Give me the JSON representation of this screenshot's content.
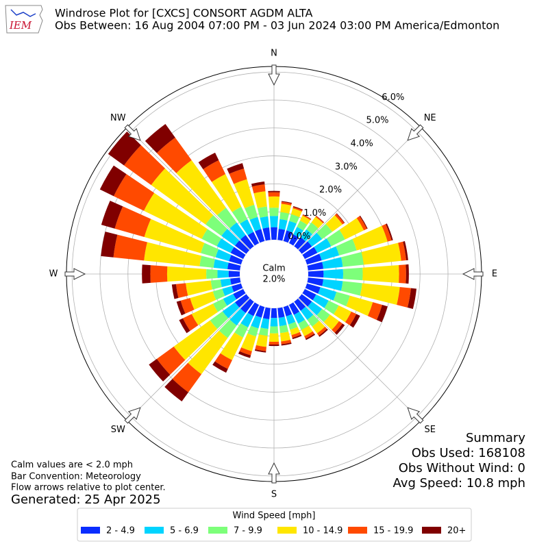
{
  "header": {
    "logo_text": "IEM",
    "title": "Windrose Plot for [CXCS] CONSORT AGDM  ALTA",
    "subtitle": "Obs Between: 16 Aug 2004 07:00 PM - 03 Jun 2024 03:00 PM America/Edmonton"
  },
  "chart_data": {
    "type": "windrose",
    "directions": [
      0,
      10,
      20,
      30,
      40,
      50,
      60,
      70,
      80,
      90,
      100,
      110,
      120,
      130,
      140,
      150,
      160,
      170,
      180,
      190,
      200,
      210,
      220,
      230,
      240,
      250,
      260,
      270,
      280,
      290,
      300,
      310,
      320,
      330,
      340,
      350
    ],
    "rlim": [
      0,
      6.2
    ],
    "rticks": [
      {
        "value": 0,
        "label": "0.0%"
      },
      {
        "value": 1,
        "label": "1.0%"
      },
      {
        "value": 2,
        "label": "2.0%"
      },
      {
        "value": 3,
        "label": "3.0%"
      },
      {
        "value": 4,
        "label": "4.0%"
      },
      {
        "value": 5,
        "label": "5.0%"
      },
      {
        "value": 6,
        "label": "6.0%"
      }
    ],
    "compass_labels": [
      "N",
      "NE",
      "E",
      "SE",
      "S",
      "SW",
      "W",
      "NW"
    ],
    "calm_label": "Calm",
    "calm_value": "2.0%",
    "legend_title": "Wind Speed [mph]",
    "series": [
      {
        "name": "2 - 4.9",
        "color": "#0a2dff",
        "values": [
          0.45,
          0.4,
          0.4,
          0.35,
          0.4,
          0.45,
          0.5,
          0.55,
          0.55,
          0.55,
          0.55,
          0.5,
          0.45,
          0.45,
          0.4,
          0.4,
          0.35,
          0.35,
          0.35,
          0.4,
          0.4,
          0.45,
          0.5,
          0.5,
          0.4,
          0.35,
          0.35,
          0.4,
          0.45,
          0.45,
          0.5,
          0.5,
          0.5,
          0.45,
          0.45,
          0.45
        ]
      },
      {
        "name": "5 - 6.9",
        "color": "#00d4ff",
        "values": [
          0.4,
          0.35,
          0.35,
          0.3,
          0.35,
          0.45,
          0.55,
          0.65,
          0.7,
          0.7,
          0.7,
          0.6,
          0.5,
          0.45,
          0.4,
          0.35,
          0.3,
          0.3,
          0.3,
          0.35,
          0.4,
          0.45,
          0.55,
          0.55,
          0.4,
          0.35,
          0.35,
          0.4,
          0.5,
          0.5,
          0.55,
          0.6,
          0.55,
          0.5,
          0.45,
          0.4
        ]
      },
      {
        "name": "7 - 9.9",
        "color": "#7dff7a",
        "values": [
          0.3,
          0.25,
          0.25,
          0.25,
          0.3,
          0.45,
          0.55,
          0.65,
          0.75,
          0.7,
          0.7,
          0.5,
          0.4,
          0.35,
          0.3,
          0.25,
          0.2,
          0.25,
          0.25,
          0.25,
          0.3,
          0.4,
          0.55,
          0.55,
          0.4,
          0.35,
          0.35,
          0.4,
          0.5,
          0.55,
          0.6,
          0.7,
          0.65,
          0.5,
          0.45,
          0.35
        ]
      },
      {
        "name": "10 - 14.9",
        "color": "#ffe600",
        "values": [
          0.4,
          0.3,
          0.22,
          0.2,
          0.25,
          0.45,
          0.75,
          1.15,
          1.35,
          1.3,
          1.35,
          0.85,
          0.5,
          0.4,
          0.3,
          0.25,
          0.2,
          0.3,
          0.3,
          0.4,
          0.55,
          0.9,
          1.6,
          1.6,
          0.85,
          0.85,
          0.9,
          1.4,
          2.0,
          2.1,
          2.3,
          2.4,
          2.1,
          1.3,
          0.95,
          0.55
        ]
      },
      {
        "name": "15 - 19.9",
        "color": "#ff4a00",
        "values": [
          0.15,
          0.07,
          0.05,
          0.04,
          0.04,
          0.08,
          0.12,
          0.15,
          0.18,
          0.25,
          0.4,
          0.35,
          0.2,
          0.15,
          0.1,
          0.1,
          0.1,
          0.1,
          0.1,
          0.15,
          0.15,
          0.35,
          0.8,
          0.75,
          0.35,
          0.35,
          0.35,
          0.6,
          1.1,
          1.1,
          1.2,
          1.2,
          1.0,
          0.55,
          0.4,
          0.25
        ]
      },
      {
        "name": "20+",
        "color": "#800000",
        "values": [
          0.05,
          0.03,
          0.03,
          0.01,
          0.01,
          0.02,
          0.03,
          0.05,
          0.07,
          0.1,
          0.2,
          0.2,
          0.15,
          0.1,
          0.05,
          0.05,
          0.05,
          0.05,
          0.05,
          0.05,
          0.1,
          0.15,
          0.4,
          0.35,
          0.15,
          0.15,
          0.15,
          0.3,
          0.45,
          0.5,
          0.55,
          0.7,
          0.6,
          0.3,
          0.2,
          0.1
        ]
      }
    ]
  },
  "notes": [
    "Calm values are < 2.0 mph",
    "Bar Convention: Meteorology",
    "Flow arrows relative to plot center."
  ],
  "generated": "Generated: 25 Apr 2025",
  "summary": [
    "Summary",
    "Obs Used: 168108",
    "Obs Without Wind: 0",
    "Avg Speed: 10.8 mph"
  ]
}
